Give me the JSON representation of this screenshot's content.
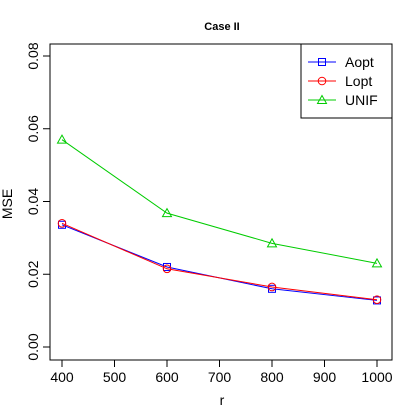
{
  "chart_data": {
    "type": "line",
    "title": "Case II",
    "xlabel": "r",
    "ylabel": "MSE",
    "x": [
      400,
      600,
      800,
      1000
    ],
    "xlim": [
      400,
      1000
    ],
    "ylim": [
      0,
      0.08
    ],
    "xticks": [
      400,
      500,
      600,
      700,
      800,
      900,
      1000
    ],
    "yticks": [
      0.0,
      0.02,
      0.04,
      0.06,
      0.08
    ],
    "ytick_labels": [
      "0.00",
      "0.02",
      "0.04",
      "0.06",
      "0.08"
    ],
    "grid": false,
    "legend_position": "top-right",
    "series": [
      {
        "name": "Aopt",
        "color": "#0000ff",
        "marker": "square",
        "values": [
          0.0336,
          0.022,
          0.016,
          0.0128
        ]
      },
      {
        "name": "Lopt",
        "color": "#ff0000",
        "marker": "circle",
        "values": [
          0.034,
          0.0215,
          0.0165,
          0.013
        ]
      },
      {
        "name": "UNIF",
        "color": "#00cc00",
        "marker": "triangle",
        "values": [
          0.057,
          0.0368,
          0.0285,
          0.023
        ]
      }
    ]
  }
}
